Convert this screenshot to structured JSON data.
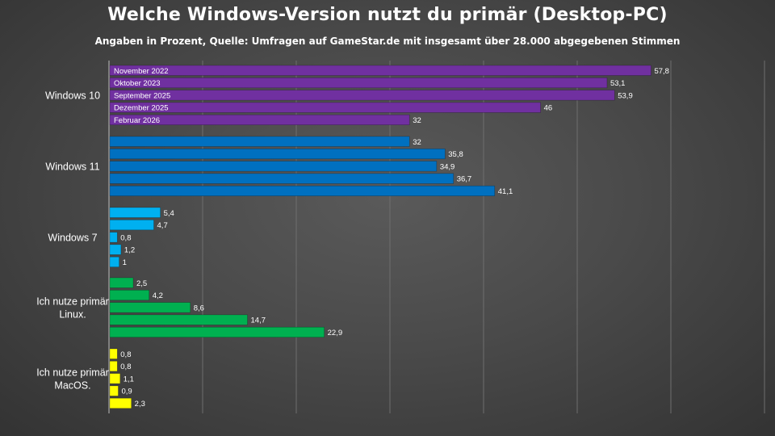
{
  "chart_data": {
    "type": "bar",
    "orientation": "horizontal",
    "title": "Welche Windows-Version nutzt du primär (Desktop-PC)",
    "subtitle": "Angaben in Prozent, Quelle: Umfragen auf GameStar.de mit insgesamt über 28.000 abgegebenen Stimmen",
    "xlim": [
      0,
      70
    ],
    "grid": true,
    "series_labels": [
      "November 2022",
      "Oktober 2023",
      "September 2025",
      "Dezember 2025",
      "Februar 2026"
    ],
    "groups": [
      {
        "category": [
          "Windows 10"
        ],
        "color": "#7030a0",
        "values": [
          57.8,
          53.1,
          53.9,
          46,
          32
        ],
        "value_labels": [
          "57,8",
          "53,1",
          "53,9",
          "46",
          "32"
        ]
      },
      {
        "category": [
          "Windows 11"
        ],
        "color": "#0070c0",
        "values": [
          32,
          35.8,
          34.9,
          36.7,
          41.1
        ],
        "value_labels": [
          "32",
          "35,8",
          "34,9",
          "36,7",
          "41,1"
        ]
      },
      {
        "category": [
          "Windows 7"
        ],
        "color": "#00b0f0",
        "values": [
          5.4,
          4.7,
          0.8,
          1.2,
          1
        ],
        "value_labels": [
          "5,4",
          "4,7",
          "0,8",
          "1,2",
          "1"
        ]
      },
      {
        "category": [
          "Ich nutze primär",
          "Linux."
        ],
        "color": "#00b050",
        "values": [
          2.5,
          4.2,
          8.6,
          14.7,
          22.9
        ],
        "value_labels": [
          "2,5",
          "4,2",
          "8,6",
          "14,7",
          "22,9"
        ]
      },
      {
        "category": [
          "Ich nutze primär",
          "MacOS."
        ],
        "color": "#ffff00",
        "values": [
          0.8,
          0.8,
          1.1,
          0.9,
          2.3
        ],
        "value_labels": [
          "0,8",
          "0,8",
          "1,1",
          "0,9",
          "2,3"
        ]
      }
    ]
  }
}
